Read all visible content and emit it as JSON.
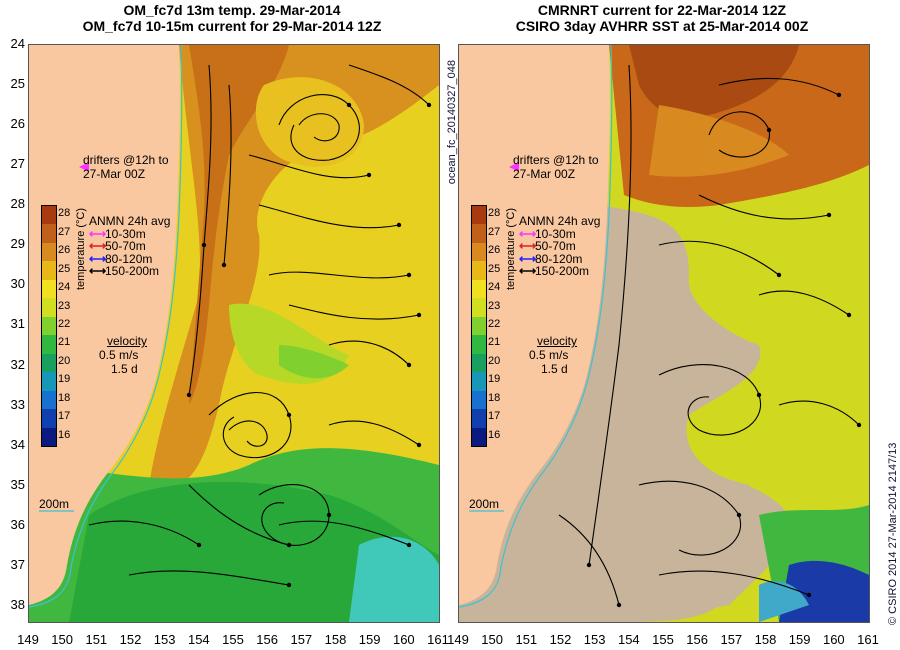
{
  "titles": {
    "left_line1": "OM_fc7d 13m temp. 29-Mar-2014",
    "left_line2": "OM_fc7d 10-15m current for 29-Mar-2014 12Z",
    "right_line1": "CMRNRT current for 22-Mar-2014 12Z",
    "right_line2": "CSIRO 3day AVHRR SST at 25-Mar-2014 00Z"
  },
  "side_labels": {
    "middle": "ocean_fc_20140327_048",
    "right": "© CSIRO 2014   27-Mar-2014 2147/13"
  },
  "overlay_text": {
    "drifters_line1": "drifters @12h to",
    "drifters_line2": "27-Mar 00Z",
    "legend_title": "ANMN 24h avg",
    "legend_items": [
      {
        "label": "10-30m",
        "color": "#ff33ff"
      },
      {
        "label": "50-70m",
        "color": "#e02020"
      },
      {
        "label": "80-120m",
        "color": "#2020ff"
      },
      {
        "label": "150-200m",
        "color": "#000000"
      }
    ],
    "velocity_title": "velocity",
    "velocity_speed": "0.5 m/s",
    "velocity_time": "1.5 d",
    "contour_label": "200m",
    "colorbar_title": "temperature (°C)"
  },
  "colorbar": {
    "ticks": [
      "28",
      "27",
      "26",
      "25",
      "24",
      "23",
      "22",
      "21",
      "20",
      "19",
      "18",
      "17",
      "16"
    ],
    "colors": [
      "#a83a10",
      "#c0601a",
      "#d88a20",
      "#e8b818",
      "#f0e020",
      "#d0e020",
      "#80d030",
      "#30b840",
      "#18a060",
      "#1898b8",
      "#1870d0",
      "#1040b0",
      "#0a1a80"
    ]
  },
  "map_axes": {
    "y_ticks": [
      "24",
      "25",
      "26",
      "27",
      "28",
      "29",
      "30",
      "31",
      "32",
      "33",
      "34",
      "35",
      "36",
      "37",
      "38"
    ],
    "x_ticks_left": [
      "149",
      "150",
      "151",
      "152",
      "153",
      "154",
      "155",
      "156",
      "157",
      "158",
      "159",
      "160",
      "161"
    ],
    "x_ticks_right": [
      "149",
      "150",
      "151",
      "152",
      "153",
      "154",
      "155",
      "156",
      "157",
      "158",
      "159",
      "160",
      "161"
    ],
    "lon_range": [
      149,
      161
    ],
    "lat_range": [
      24,
      38.4
    ]
  },
  "colors": {
    "land": "#fac8a0",
    "cloud": "#c8b49a",
    "coast_line": "#40c0d0",
    "warm": "#d88a20",
    "mid": "#f0e020",
    "cool": "#30b840"
  }
}
